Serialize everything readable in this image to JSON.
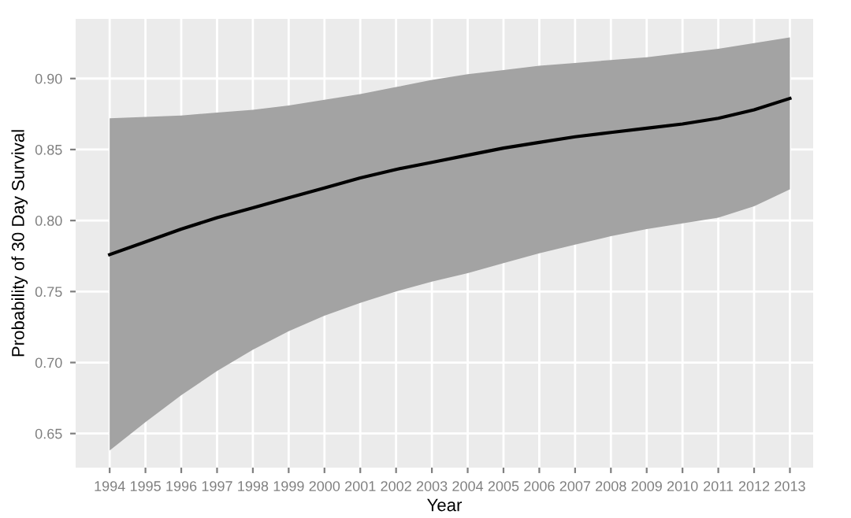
{
  "chart_data": {
    "type": "line",
    "xlabel": "Year",
    "ylabel": "Probability of 30 Day Survival",
    "x": [
      1994,
      1995,
      1996,
      1997,
      1998,
      1999,
      2000,
      2001,
      2002,
      2003,
      2004,
      2005,
      2006,
      2007,
      2008,
      2009,
      2010,
      2011,
      2012,
      2013
    ],
    "series": [
      {
        "color": "#000000",
        "values": [
          0.776,
          0.785,
          0.794,
          0.802,
          0.809,
          0.816,
          0.823,
          0.83,
          0.836,
          0.841,
          0.846,
          0.851,
          0.855,
          0.859,
          0.862,
          0.865,
          0.868,
          0.872,
          0.878,
          0.886
        ],
        "lower": [
          0.638,
          0.658,
          0.677,
          0.694,
          0.709,
          0.722,
          0.733,
          0.742,
          0.75,
          0.757,
          0.763,
          0.77,
          0.777,
          0.783,
          0.789,
          0.794,
          0.798,
          0.802,
          0.81,
          0.822
        ],
        "upper": [
          0.872,
          0.873,
          0.874,
          0.876,
          0.878,
          0.881,
          0.885,
          0.889,
          0.894,
          0.899,
          0.903,
          0.906,
          0.909,
          0.911,
          0.913,
          0.915,
          0.918,
          0.921,
          0.925,
          0.929
        ]
      }
    ],
    "xlim": [
      1993.05,
      2013.65
    ],
    "ylim": [
      0.626,
      0.942
    ],
    "xticks": [
      1994,
      1995,
      1996,
      1997,
      1998,
      1999,
      2000,
      2001,
      2002,
      2003,
      2004,
      2005,
      2006,
      2007,
      2008,
      2009,
      2010,
      2011,
      2012,
      2013
    ],
    "yticks": [
      {
        "value": 0.65,
        "label": "0.65"
      },
      {
        "value": 0.7,
        "label": "0.70"
      },
      {
        "value": 0.75,
        "label": "0.75"
      },
      {
        "value": 0.8,
        "label": "0.80"
      },
      {
        "value": 0.85,
        "label": "0.85"
      },
      {
        "value": 0.9,
        "label": "0.90"
      }
    ],
    "grid": true,
    "line_style": "solid",
    "marker": "none"
  }
}
